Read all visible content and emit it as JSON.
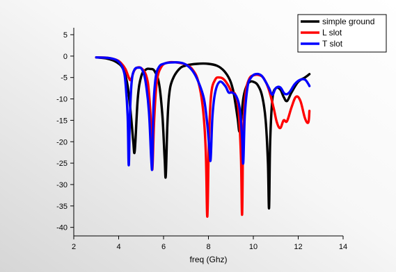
{
  "chart_data": {
    "type": "line",
    "title": "",
    "xlabel": "freq (Ghz)",
    "ylabel": "",
    "xlim": [
      2,
      14
    ],
    "ylim": [
      -42,
      5
    ],
    "xticks": [
      2,
      4,
      6,
      8,
      10,
      12,
      14
    ],
    "yticks": [
      5,
      0,
      -5,
      -10,
      -15,
      -20,
      -25,
      -30,
      -35,
      -40
    ],
    "grid": false,
    "legend_position": "top-right",
    "series": [
      {
        "name": "simple ground",
        "color": "#000000",
        "x": [
          3.0,
          3.5,
          3.9,
          4.2,
          4.4,
          4.55,
          4.65,
          4.72,
          4.85,
          5.0,
          5.2,
          5.4,
          5.6,
          5.8,
          5.95,
          6.05,
          6.1,
          6.17,
          6.25,
          6.4,
          6.7,
          7.0,
          7.5,
          8.0,
          8.4,
          8.7,
          8.95,
          9.1,
          9.2,
          9.3,
          9.4,
          9.55,
          9.7,
          9.85,
          10.0,
          10.2,
          10.4,
          10.55,
          10.65,
          10.7,
          10.75,
          10.85,
          11.0,
          11.2,
          11.35,
          11.5,
          11.7,
          12.0,
          12.3,
          12.5
        ],
        "values": [
          -0.3,
          -0.6,
          -1.4,
          -3.0,
          -7.0,
          -14.0,
          -20.0,
          -22.0,
          -10.0,
          -4.8,
          -3.2,
          -3.0,
          -3.5,
          -6.5,
          -14.0,
          -24.0,
          -28.0,
          -16.0,
          -9.0,
          -5.5,
          -3.0,
          -2.2,
          -1.8,
          -1.8,
          -2.3,
          -3.5,
          -5.5,
          -8.0,
          -11.0,
          -14.5,
          -17.5,
          -10.0,
          -7.0,
          -6.0,
          -6.0,
          -6.8,
          -9.5,
          -15.0,
          -25.0,
          -35.5,
          -20.0,
          -10.0,
          -7.5,
          -7.8,
          -9.5,
          -10.5,
          -8.5,
          -6.0,
          -5.0,
          -4.2
        ]
      },
      {
        "name": "L slot",
        "color": "#ff0000",
        "x": [
          3.0,
          3.5,
          3.9,
          4.1,
          4.3,
          4.45,
          4.55,
          4.7,
          4.9,
          5.1,
          5.25,
          5.35,
          5.45,
          5.5,
          5.58,
          5.7,
          5.9,
          6.2,
          6.6,
          7.0,
          7.3,
          7.55,
          7.75,
          7.88,
          7.95,
          8.02,
          8.12,
          8.3,
          8.5,
          8.7,
          8.9,
          9.05,
          9.2,
          9.35,
          9.45,
          9.5,
          9.55,
          9.65,
          9.8,
          10.0,
          10.3,
          10.5,
          10.7,
          10.9,
          11.05,
          11.2,
          11.35,
          11.5,
          11.7,
          11.9,
          12.1,
          12.3,
          12.45,
          12.5
        ],
        "values": [
          -0.3,
          -0.4,
          -0.9,
          -1.6,
          -3.0,
          -5.0,
          -5.5,
          -3.3,
          -2.6,
          -3.3,
          -5.0,
          -8.5,
          -17.0,
          -26.5,
          -15.0,
          -6.0,
          -2.5,
          -1.5,
          -1.5,
          -2.0,
          -3.2,
          -6.0,
          -12.0,
          -22.0,
          -37.5,
          -20.0,
          -9.0,
          -5.5,
          -5.0,
          -5.5,
          -7.0,
          -8.5,
          -9.0,
          -13.0,
          -24.0,
          -37.0,
          -18.0,
          -9.0,
          -5.5,
          -4.5,
          -4.5,
          -5.5,
          -8.0,
          -12.0,
          -15.5,
          -16.8,
          -15.0,
          -15.2,
          -12.0,
          -9.5,
          -10.5,
          -14.5,
          -15.5,
          -12.8
        ]
      },
      {
        "name": "T slot",
        "color": "#0000ff",
        "x": [
          3.0,
          3.5,
          3.85,
          4.05,
          4.2,
          4.3,
          4.4,
          4.45,
          4.5,
          4.58,
          4.7,
          4.9,
          5.05,
          5.2,
          5.35,
          5.45,
          5.5,
          5.55,
          5.65,
          5.8,
          6.0,
          6.3,
          6.7,
          7.0,
          7.3,
          7.55,
          7.8,
          7.95,
          8.05,
          8.1,
          8.18,
          8.3,
          8.5,
          8.75,
          8.9,
          9.05,
          9.25,
          9.4,
          9.5,
          9.55,
          9.62,
          9.75,
          9.9,
          10.1,
          10.35,
          10.55,
          10.7,
          10.85,
          11.0,
          11.2,
          11.4,
          11.6,
          11.85,
          12.1,
          12.3,
          12.45,
          12.5
        ],
        "values": [
          -0.3,
          -0.4,
          -0.8,
          -1.6,
          -3.0,
          -6.0,
          -14.0,
          -25.5,
          -14.0,
          -6.0,
          -3.2,
          -2.7,
          -3.2,
          -6.0,
          -13.0,
          -24.0,
          -25.5,
          -12.0,
          -5.0,
          -2.5,
          -1.8,
          -1.5,
          -1.5,
          -2.0,
          -3.5,
          -6.0,
          -10.0,
          -16.0,
          -22.0,
          -24.0,
          -14.0,
          -8.5,
          -6.0,
          -7.0,
          -8.5,
          -8.5,
          -9.5,
          -12.5,
          -19.0,
          -25.0,
          -14.0,
          -7.0,
          -5.0,
          -4.2,
          -4.5,
          -6.0,
          -7.5,
          -9.0,
          -7.5,
          -7.3,
          -8.8,
          -8.5,
          -6.5,
          -5.5,
          -5.5,
          -6.5,
          -7.0
        ]
      }
    ]
  }
}
